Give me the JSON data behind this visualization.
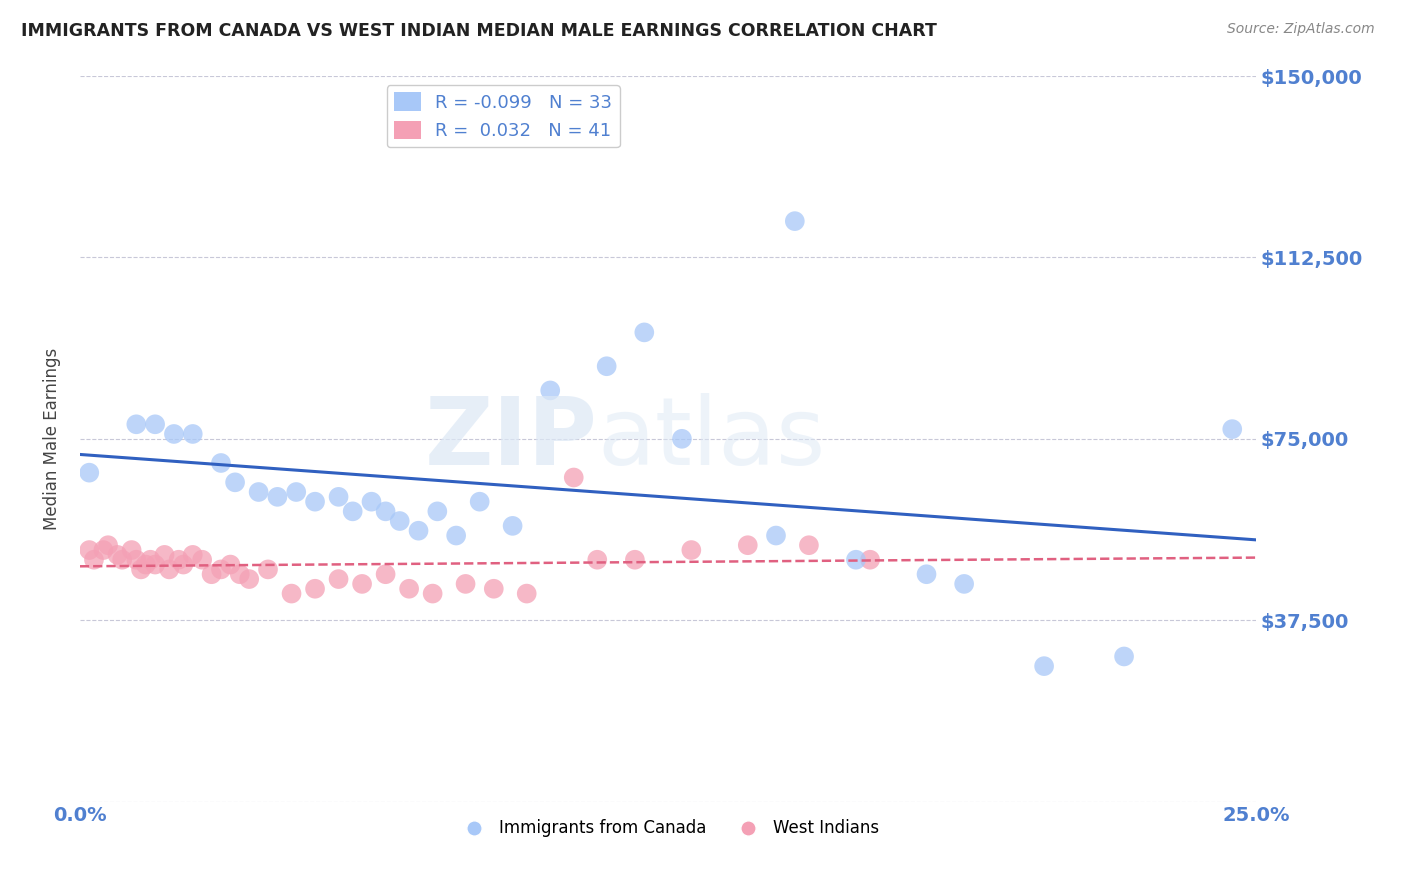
{
  "title": "IMMIGRANTS FROM CANADA VS WEST INDIAN MEDIAN MALE EARNINGS CORRELATION CHART",
  "source": "Source: ZipAtlas.com",
  "ylabel": "Median Male Earnings",
  "xlim": [
    0.0,
    0.25
  ],
  "ylim": [
    0,
    150000
  ],
  "yticks": [
    0,
    37500,
    75000,
    112500,
    150000
  ],
  "ytick_labels": [
    "",
    "$37,500",
    "$75,000",
    "$112,500",
    "$150,000"
  ],
  "xticks": [
    0.0,
    0.05,
    0.1,
    0.15,
    0.2,
    0.25
  ],
  "canada_R": -0.099,
  "canada_N": 33,
  "westindian_R": 0.032,
  "westindian_N": 41,
  "canada_color": "#a8c8f8",
  "westindian_color": "#f4a0b5",
  "canada_line_color": "#3060c0",
  "westindian_line_color": "#e06080",
  "background_color": "#ffffff",
  "grid_color": "#c8c8d8",
  "title_color": "#222222",
  "axis_label_color": "#444444",
  "ytick_color": "#5080d0",
  "xtick_color": "#5080d0",
  "canada_x": [
    0.002,
    0.012,
    0.016,
    0.02,
    0.024,
    0.03,
    0.033,
    0.038,
    0.042,
    0.046,
    0.05,
    0.055,
    0.058,
    0.062,
    0.065,
    0.068,
    0.072,
    0.076,
    0.08,
    0.085,
    0.092,
    0.1,
    0.112,
    0.12,
    0.128,
    0.148,
    0.152,
    0.165,
    0.18,
    0.188,
    0.205,
    0.222,
    0.245
  ],
  "canada_y": [
    68000,
    78000,
    78000,
    76000,
    76000,
    70000,
    66000,
    64000,
    63000,
    64000,
    62000,
    63000,
    60000,
    62000,
    60000,
    58000,
    56000,
    60000,
    55000,
    62000,
    57000,
    85000,
    90000,
    97000,
    75000,
    55000,
    120000,
    50000,
    47000,
    45000,
    28000,
    30000,
    77000
  ],
  "westindian_x": [
    0.002,
    0.003,
    0.005,
    0.006,
    0.008,
    0.009,
    0.011,
    0.012,
    0.013,
    0.014,
    0.015,
    0.016,
    0.018,
    0.019,
    0.021,
    0.022,
    0.024,
    0.026,
    0.028,
    0.03,
    0.032,
    0.034,
    0.036,
    0.04,
    0.045,
    0.05,
    0.055,
    0.06,
    0.065,
    0.07,
    0.075,
    0.082,
    0.088,
    0.095,
    0.105,
    0.11,
    0.118,
    0.13,
    0.142,
    0.155,
    0.168
  ],
  "westindian_y": [
    52000,
    50000,
    52000,
    53000,
    51000,
    50000,
    52000,
    50000,
    48000,
    49000,
    50000,
    49000,
    51000,
    48000,
    50000,
    49000,
    51000,
    50000,
    47000,
    48000,
    49000,
    47000,
    46000,
    48000,
    43000,
    44000,
    46000,
    45000,
    47000,
    44000,
    43000,
    45000,
    44000,
    43000,
    67000,
    50000,
    50000,
    52000,
    53000,
    53000,
    50000
  ]
}
